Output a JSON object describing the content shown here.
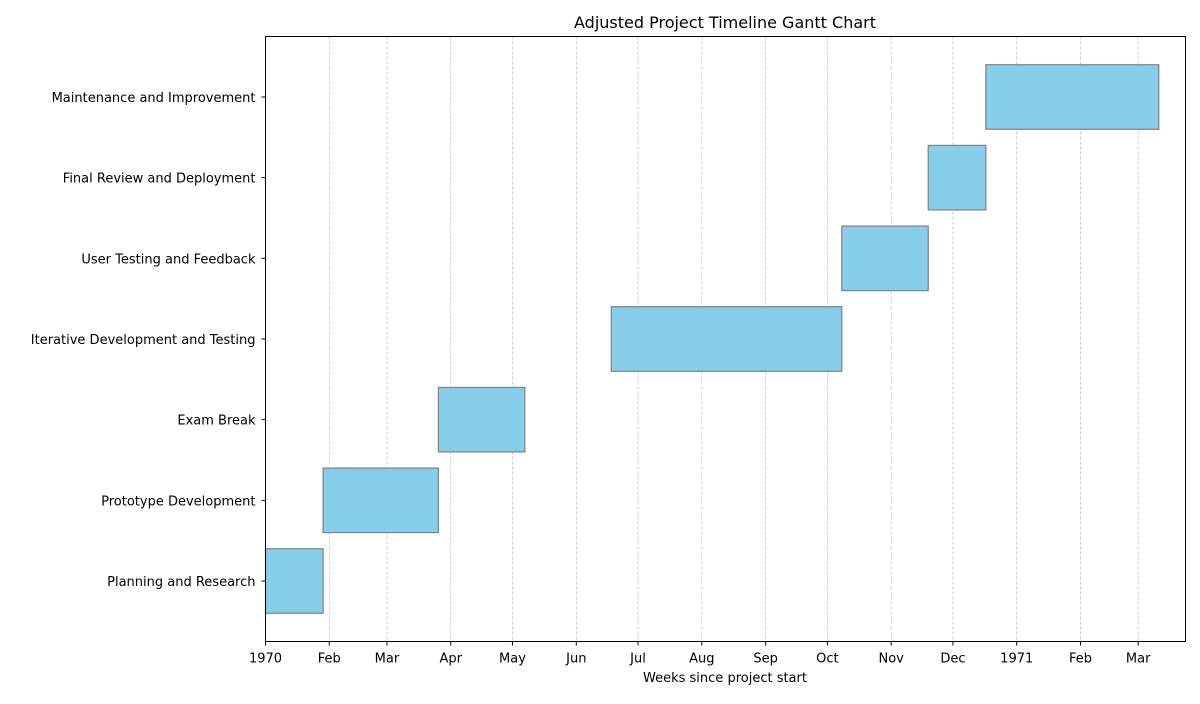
{
  "chart_data": {
    "type": "gantt",
    "title": "Adjusted Project Timeline Gantt Chart",
    "xlabel": "Weeks since project start",
    "ylabel": "",
    "xlim": [
      "1970-01-01",
      "1971-03-24"
    ],
    "grid": {
      "x": true,
      "y": false,
      "style": "dashed"
    },
    "bar_color": "#87CEEB",
    "bar_edge_color": "#808080",
    "x_ticks": [
      {
        "date": "1970-01-01",
        "label": "1970"
      },
      {
        "date": "1970-02-01",
        "label": "Feb"
      },
      {
        "date": "1970-03-01",
        "label": "Mar"
      },
      {
        "date": "1970-04-01",
        "label": "Apr"
      },
      {
        "date": "1970-05-01",
        "label": "May"
      },
      {
        "date": "1970-06-01",
        "label": "Jun"
      },
      {
        "date": "1970-07-01",
        "label": "Jul"
      },
      {
        "date": "1970-08-01",
        "label": "Aug"
      },
      {
        "date": "1970-09-01",
        "label": "Sep"
      },
      {
        "date": "1970-10-01",
        "label": "Oct"
      },
      {
        "date": "1970-11-01",
        "label": "Nov"
      },
      {
        "date": "1970-12-01",
        "label": "Dec"
      },
      {
        "date": "1971-01-01",
        "label": "1971"
      },
      {
        "date": "1971-02-01",
        "label": "Feb"
      },
      {
        "date": "1971-03-01",
        "label": "Mar"
      }
    ],
    "tasks": [
      {
        "name": "Planning and Research",
        "start": "1970-01-01",
        "end": "1970-01-29"
      },
      {
        "name": "Prototype Development",
        "start": "1970-01-29",
        "end": "1970-03-26"
      },
      {
        "name": "Exam Break",
        "start": "1970-03-26",
        "end": "1970-05-07"
      },
      {
        "name": "Iterative Development and Testing",
        "start": "1970-06-18",
        "end": "1970-10-08"
      },
      {
        "name": "User Testing and Feedback",
        "start": "1970-10-08",
        "end": "1970-11-19"
      },
      {
        "name": "Final Review and Deployment",
        "start": "1970-11-19",
        "end": "1970-12-17"
      },
      {
        "name": "Maintenance and Improvement",
        "start": "1970-12-17",
        "end": "1971-03-11"
      }
    ]
  }
}
